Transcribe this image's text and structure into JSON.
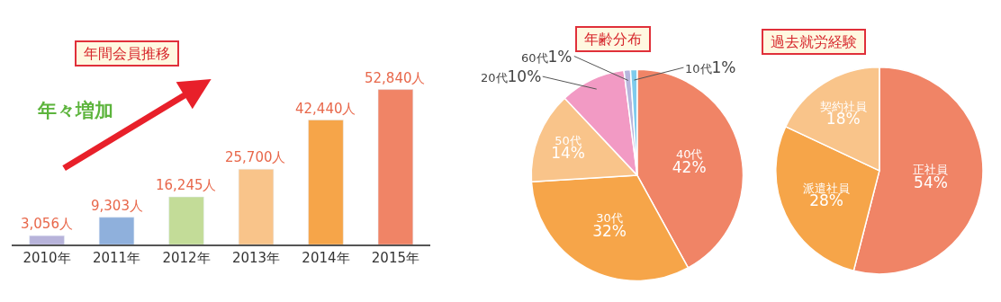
{
  "chart_data": [
    {
      "type": "bar",
      "title": "年間会員推移",
      "categories": [
        "2010年",
        "2011年",
        "2012年",
        "2013年",
        "2014年",
        "2015年"
      ],
      "values": [
        3056,
        9303,
        16245,
        25700,
        42440,
        52840
      ],
      "colors": [
        "#b7b3da",
        "#8fb0dc",
        "#c3dc98",
        "#f9c48a",
        "#f6a549",
        "#f08466"
      ],
      "value_labels": [
        "3,056人",
        "9,303人",
        "16,245人",
        "25,700人",
        "42,440人",
        "52,840人"
      ],
      "tick_labels": "x",
      "annotations": [
        "年々増加"
      ]
    },
    {
      "type": "pie",
      "title": "年齢分布",
      "categories": [
        "40代",
        "30代",
        "50代",
        "20代",
        "60代",
        "10代"
      ],
      "values": [
        42,
        32,
        14,
        10,
        1,
        1
      ],
      "colors": [
        "#f08466",
        "#f6a549",
        "#f9c48a",
        "#f29ac4",
        "#b8b5dc",
        "#7fcbec"
      ],
      "value_labels": [
        "42%",
        "32%",
        "14%",
        "10%",
        "1%",
        "1%"
      ]
    },
    {
      "type": "pie",
      "title": "過去就労経験",
      "categories": [
        "正社員",
        "派遣社員",
        "契約社員"
      ],
      "values": [
        54,
        28,
        18
      ],
      "colors": [
        "#f08466",
        "#f6a549",
        "#f9c48a"
      ],
      "value_labels": [
        "54%",
        "28%",
        "18%"
      ]
    }
  ]
}
